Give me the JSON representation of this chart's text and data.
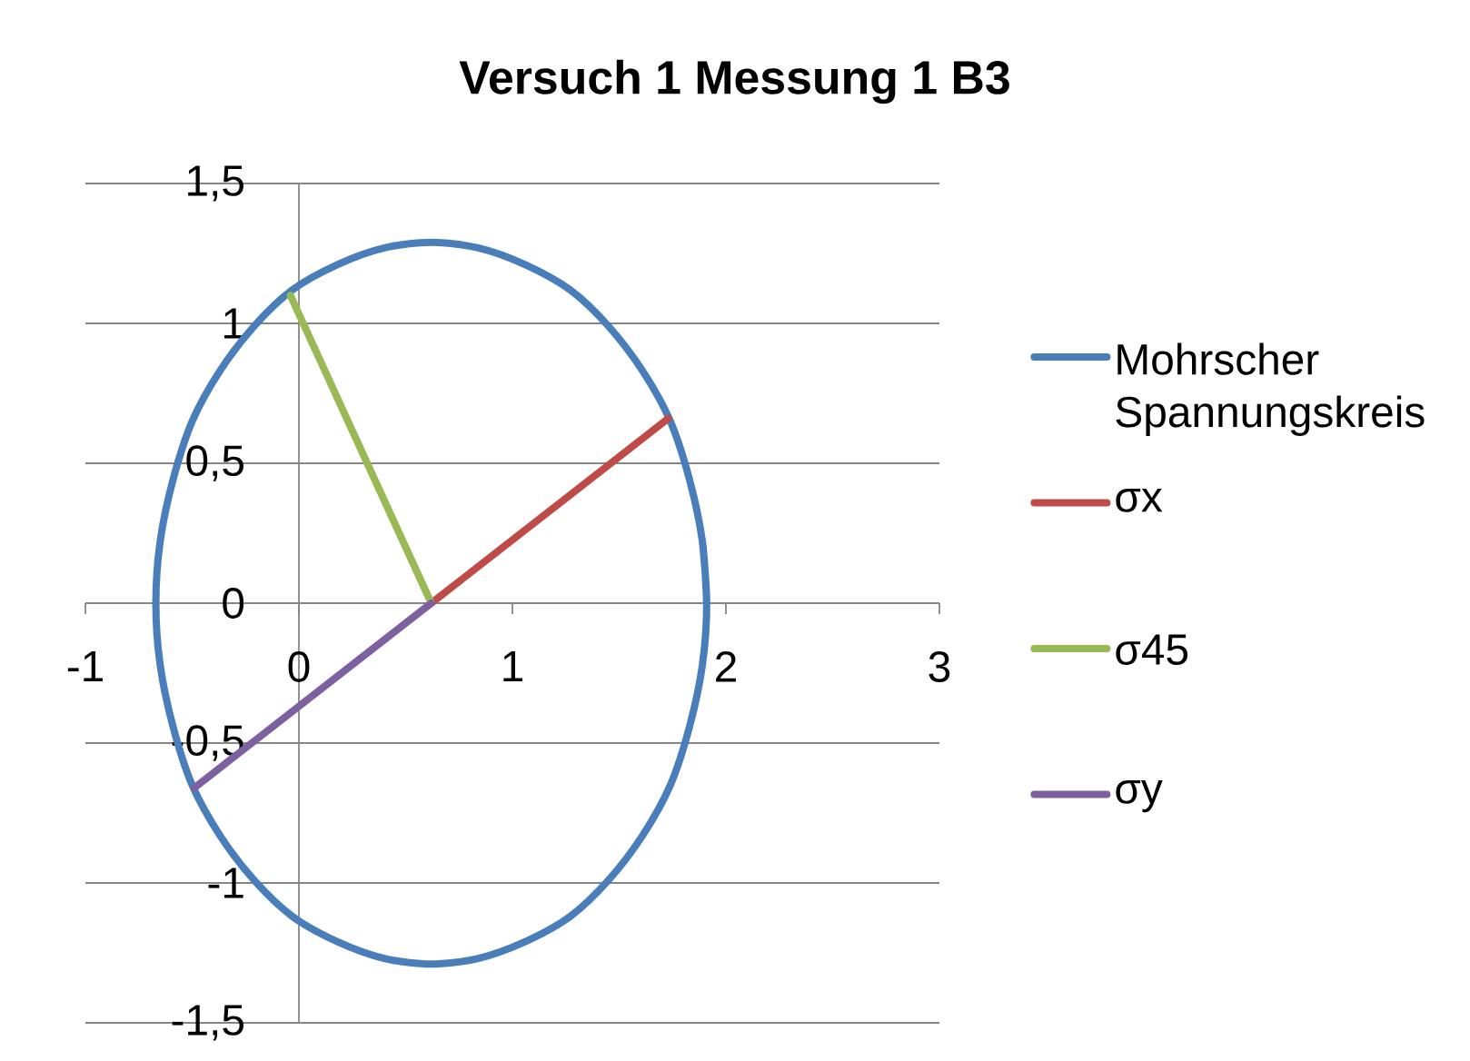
{
  "chart_data": {
    "type": "line",
    "title": "Versuch 1 Messung 1 B3",
    "series": [
      {
        "name": "Mohrscher Spannungskreis",
        "color": "#4a7ebb",
        "x": [
          1.91,
          1.89,
          1.83,
          1.74,
          1.61,
          1.45,
          1.27,
          1.06,
          0.84,
          0.62,
          0.4,
          0.18,
          -0.03,
          -0.21,
          -0.37,
          -0.5,
          -0.59,
          -0.65,
          -0.67,
          -0.65,
          -0.59,
          -0.5,
          -0.37,
          -0.21,
          -0.03,
          0.18,
          0.4,
          0.62,
          0.84,
          1.06,
          1.27,
          1.45,
          1.61,
          1.74,
          1.83,
          1.89,
          1.91,
          1.89
        ],
        "values": [
          0,
          0.22,
          0.44,
          0.65,
          0.83,
          0.99,
          1.12,
          1.21,
          1.27,
          1.29,
          1.27,
          1.21,
          1.12,
          0.99,
          0.83,
          0.65,
          0.44,
          0.22,
          0,
          -0.22,
          -0.44,
          -0.65,
          -0.83,
          -0.99,
          -1.12,
          -1.21,
          -1.27,
          -1.29,
          -1.27,
          -1.21,
          -1.12,
          -0.99,
          -0.83,
          -0.65,
          -0.44,
          -0.22,
          0,
          0.22
        ]
      },
      {
        "name": "σx",
        "color": "#be4b48",
        "x": [
          0.62,
          1.73
        ],
        "values": [
          0,
          0.66
        ]
      },
      {
        "name": "σ45",
        "color": "#98b954",
        "x": [
          0.62,
          -0.04
        ],
        "values": [
          0,
          1.1
        ]
      },
      {
        "name": "σy",
        "color": "#7d60a0",
        "x": [
          0.62,
          -0.49
        ],
        "values": [
          0,
          -0.66
        ]
      }
    ],
    "xlim": [
      -1,
      3
    ],
    "ylim": [
      -1.5,
      1.5
    ],
    "xticks": [
      -1,
      0,
      1,
      2,
      3
    ],
    "yticks": [
      {
        "value": -1.5,
        "label": "-1,5"
      },
      -1,
      {
        "value": -0.5,
        "label": "-0,5"
      },
      0,
      {
        "value": 0.5,
        "label": "0,5"
      },
      1,
      {
        "value": 1.5,
        "label": "1,5"
      }
    ],
    "grid": "y",
    "legend": "right",
    "marker": "none"
  }
}
